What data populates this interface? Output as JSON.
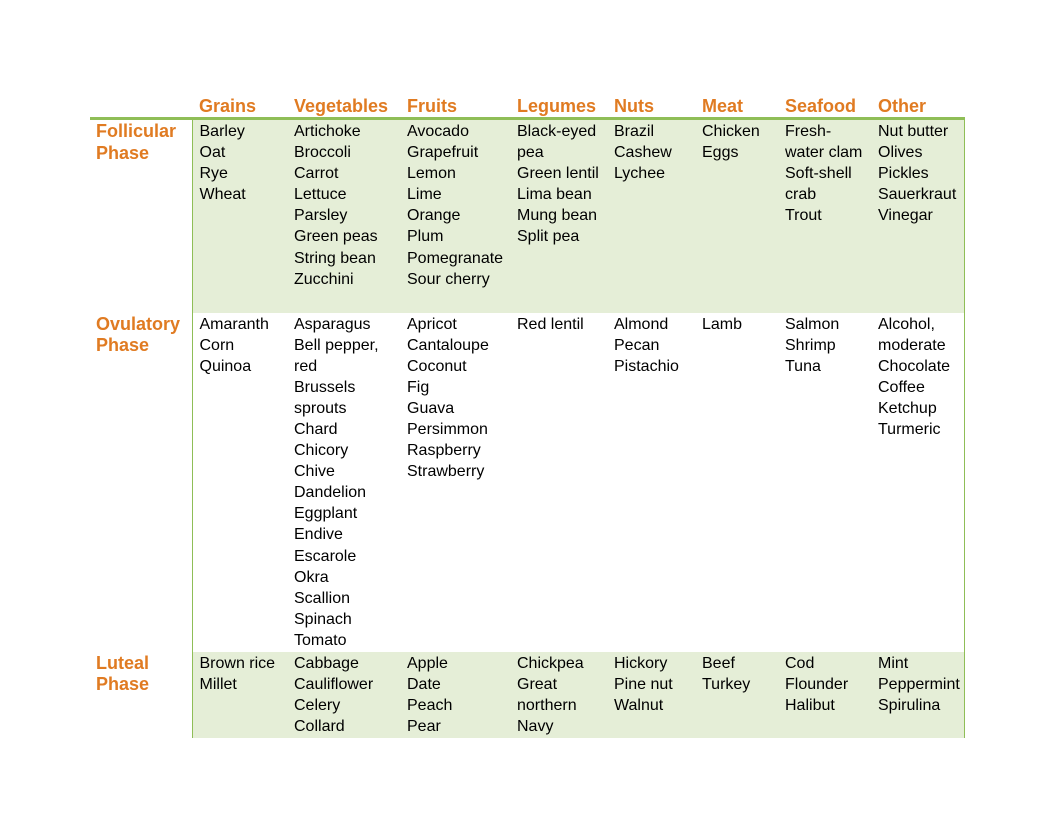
{
  "columns": [
    "Grains",
    "Vegetables",
    "Fruits",
    "Legumes",
    "Nuts",
    "Meat",
    "Seafood",
    "Other"
  ],
  "colors": {
    "header_text": "#e07b22",
    "accent_line": "#8fbe57",
    "row_shade": "#e5eed7"
  },
  "rows": [
    {
      "phase": [
        "Follicular",
        "Phase"
      ],
      "cells": [
        [
          "Barley",
          "Oat",
          "Rye",
          "Wheat"
        ],
        [
          "Artichoke",
          "Broccoli",
          "Carrot",
          "Lettuce",
          "Parsley",
          "Green peas",
          "String bean",
          "Zucchini"
        ],
        [
          "Avocado",
          "Grapefruit",
          "Lemon",
          "Lime",
          "Orange",
          "Plum",
          "Pomegranate",
          "Sour cherry"
        ],
        [
          "Black-eyed",
          "pea",
          "Green lentil",
          "Lima bean",
          "Mung bean",
          "Split pea"
        ],
        [
          "Brazil",
          "Cashew",
          "Lychee"
        ],
        [
          "Chicken",
          "Eggs"
        ],
        [
          "Fresh-",
          "water clam",
          "Soft-shell",
          "crab",
          "Trout"
        ],
        [
          "Nut butter",
          "Olives",
          "Pickles",
          "Sauerkraut",
          "Vinegar"
        ]
      ]
    },
    {
      "phase": [
        "Ovulatory",
        "Phase"
      ],
      "cells": [
        [
          "Amaranth",
          "Corn",
          "Quinoa"
        ],
        [
          "Asparagus",
          "Bell pepper,",
          "red",
          "Brussels",
          "sprouts",
          "Chard",
          "Chicory",
          "Chive",
          "Dandelion",
          "Eggplant",
          "Endive",
          "Escarole",
          "Okra",
          "Scallion",
          "Spinach",
          "Tomato"
        ],
        [
          "Apricot",
          "Cantaloupe",
          "Coconut",
          "Fig",
          "Guava",
          "Persimmon",
          "Raspberry",
          "Strawberry"
        ],
        [
          "Red lentil"
        ],
        [
          "Almond",
          "Pecan",
          "Pistachio"
        ],
        [
          "Lamb"
        ],
        [
          "Salmon",
          "Shrimp",
          "Tuna"
        ],
        [
          "Alcohol,",
          "moderate",
          "Chocolate",
          "Coffee",
          "Ketchup",
          "Turmeric"
        ]
      ]
    },
    {
      "phase": [
        "Luteal",
        "Phase"
      ],
      "cells": [
        [
          "Brown rice",
          "Millet"
        ],
        [
          "Cabbage",
          "Cauliflower",
          "Celery",
          "Collard"
        ],
        [
          "Apple",
          "Date",
          "Peach",
          "Pear"
        ],
        [
          "Chickpea",
          "Great",
          "northern",
          "Navy"
        ],
        [
          "Hickory",
          "Pine nut",
          "Walnut"
        ],
        [
          "Beef",
          "Turkey"
        ],
        [
          "Cod",
          "Flounder",
          "Halibut"
        ],
        [
          "Mint",
          "Peppermint",
          "Spirulina"
        ]
      ]
    }
  ]
}
